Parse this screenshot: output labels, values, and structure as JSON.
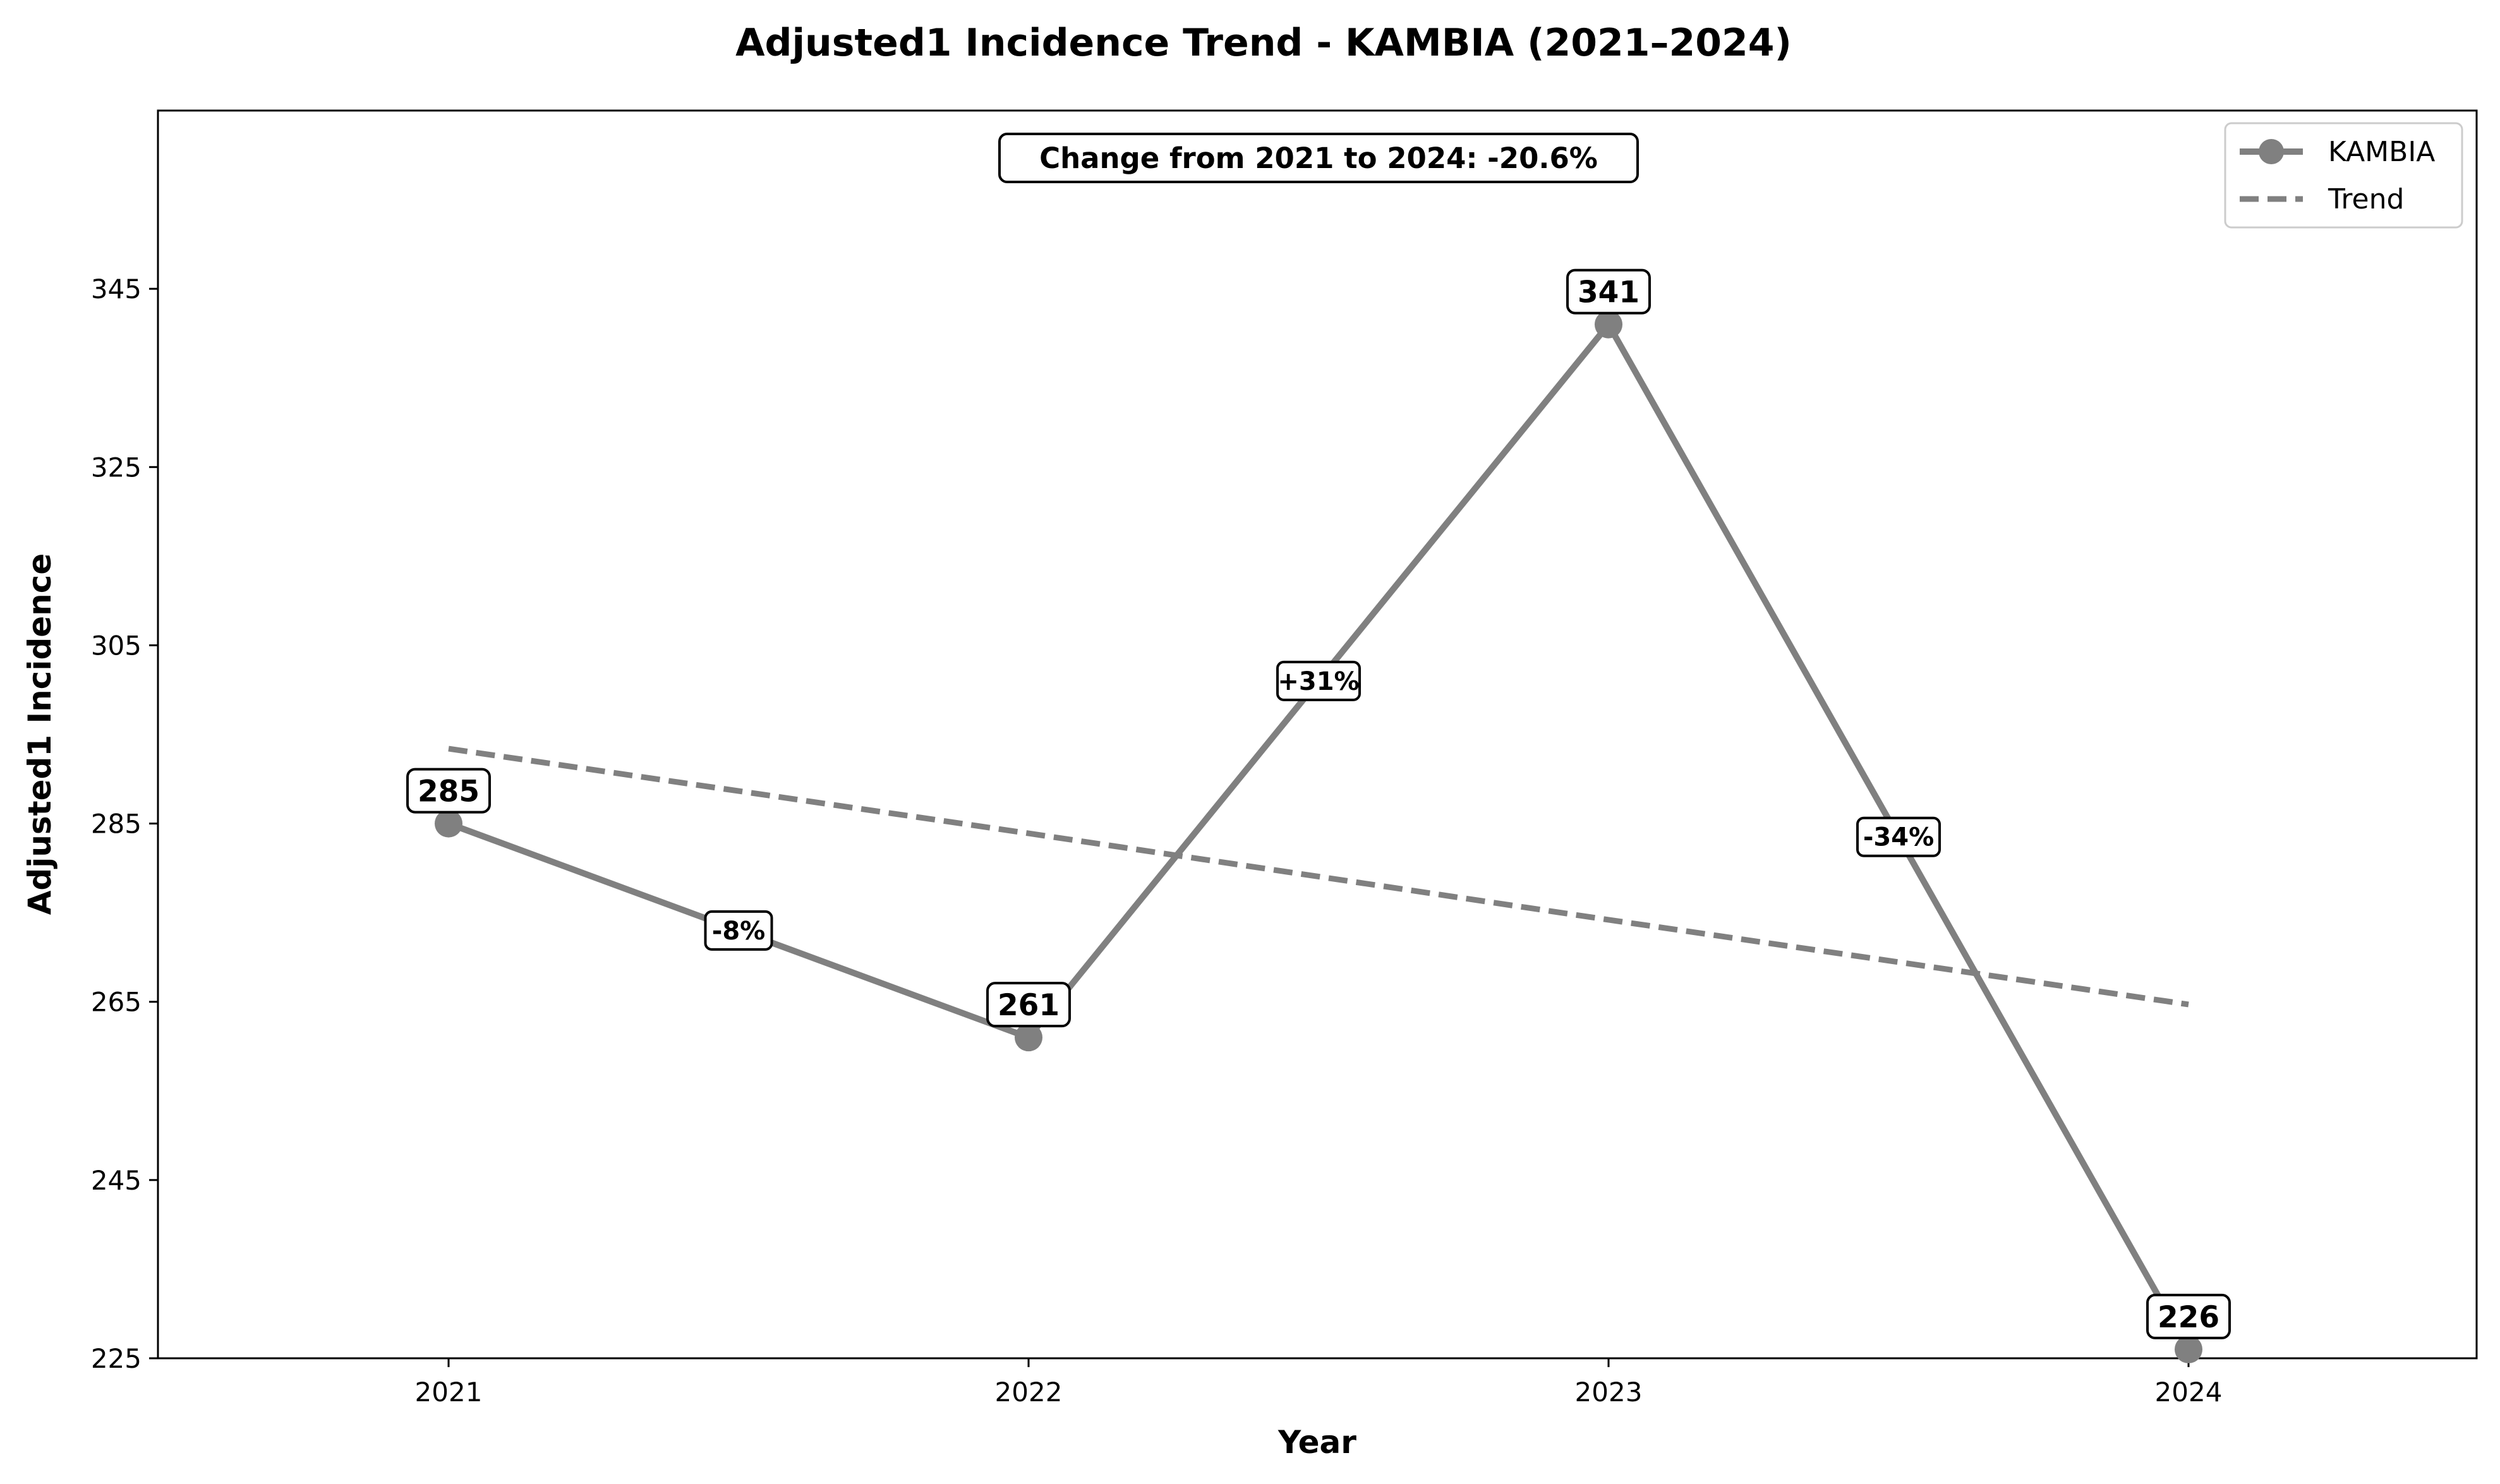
{
  "chart_data": {
    "type": "line",
    "title": "Adjusted1 Incidence Trend - KAMBIA (2021–2024)",
    "xlabel": "Year",
    "ylabel": "Adjusted1 Incidence",
    "categories": [
      "2021",
      "2022",
      "2023",
      "2024"
    ],
    "ylim": [
      225,
      365
    ],
    "yticks": [
      225,
      245,
      265,
      285,
      305,
      325,
      345
    ],
    "series": [
      {
        "name": "KAMBIA",
        "values": [
          285,
          261,
          341,
          226
        ],
        "data_labels": [
          "285",
          "261",
          "341",
          "226"
        ],
        "color": "#808080",
        "style": "solid-with-markers"
      },
      {
        "name": "Trend",
        "values": [
          293.4,
          283.9,
          274.2,
          264.7
        ],
        "color": "#808080",
        "style": "dashed"
      }
    ],
    "pct_changes": [
      "-8%",
      "+31%",
      "-34%"
    ],
    "annotation": "Change from 2021 to 2024: -20.6%",
    "legend": "top-right",
    "grid": false
  }
}
